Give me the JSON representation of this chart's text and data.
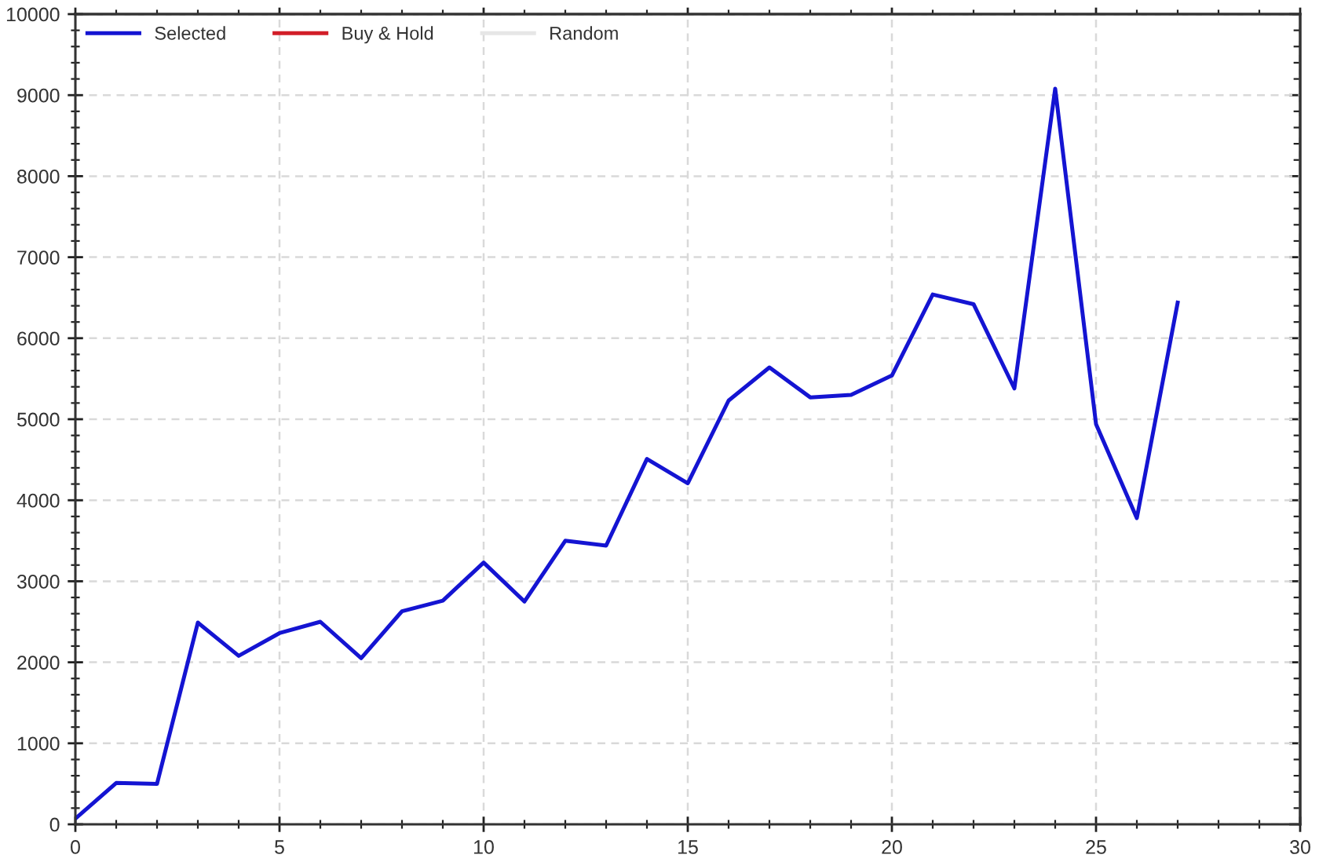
{
  "chart_data": {
    "type": "line",
    "x": [
      0,
      1,
      2,
      3,
      4,
      5,
      6,
      7,
      8,
      9,
      10,
      11,
      12,
      13,
      14,
      15,
      16,
      17,
      18,
      19,
      20,
      21,
      22,
      23,
      24,
      25,
      26,
      27
    ],
    "series": [
      {
        "name": "Selected",
        "color": "#1414d2",
        "values": [
          70,
          510,
          500,
          2490,
          2080,
          2360,
          2500,
          2050,
          2630,
          2760,
          3230,
          2750,
          3500,
          3440,
          4510,
          4210,
          5230,
          5640,
          5270,
          5300,
          5540,
          6540,
          6420,
          5380,
          9080,
          4940,
          3780,
          6440
        ]
      },
      {
        "name": "Buy & Hold",
        "color": "#d21e28",
        "values": [
          null,
          null,
          null,
          null,
          null,
          null,
          null,
          null,
          null,
          null,
          null,
          null,
          null,
          null,
          null,
          null,
          null,
          null,
          null,
          null,
          null,
          null,
          null,
          null,
          null,
          null,
          null,
          null
        ]
      },
      {
        "name": "Random",
        "color": "#e6e6e6",
        "values": [
          null,
          null,
          null,
          null,
          null,
          null,
          null,
          null,
          null,
          null,
          null,
          null,
          null,
          null,
          null,
          null,
          null,
          null,
          null,
          null,
          null,
          null,
          null,
          null,
          null,
          null,
          null,
          null
        ]
      }
    ],
    "xlim": [
      0,
      30
    ],
    "xticks": [
      0,
      5,
      10,
      15,
      20,
      25,
      30
    ],
    "ylim": [
      0,
      10000
    ],
    "yticks": [
      0,
      1000,
      2000,
      3000,
      4000,
      5000,
      6000,
      7000,
      8000,
      9000,
      10000
    ],
    "grid": true,
    "legend": "top left",
    "line_style": "solid"
  }
}
